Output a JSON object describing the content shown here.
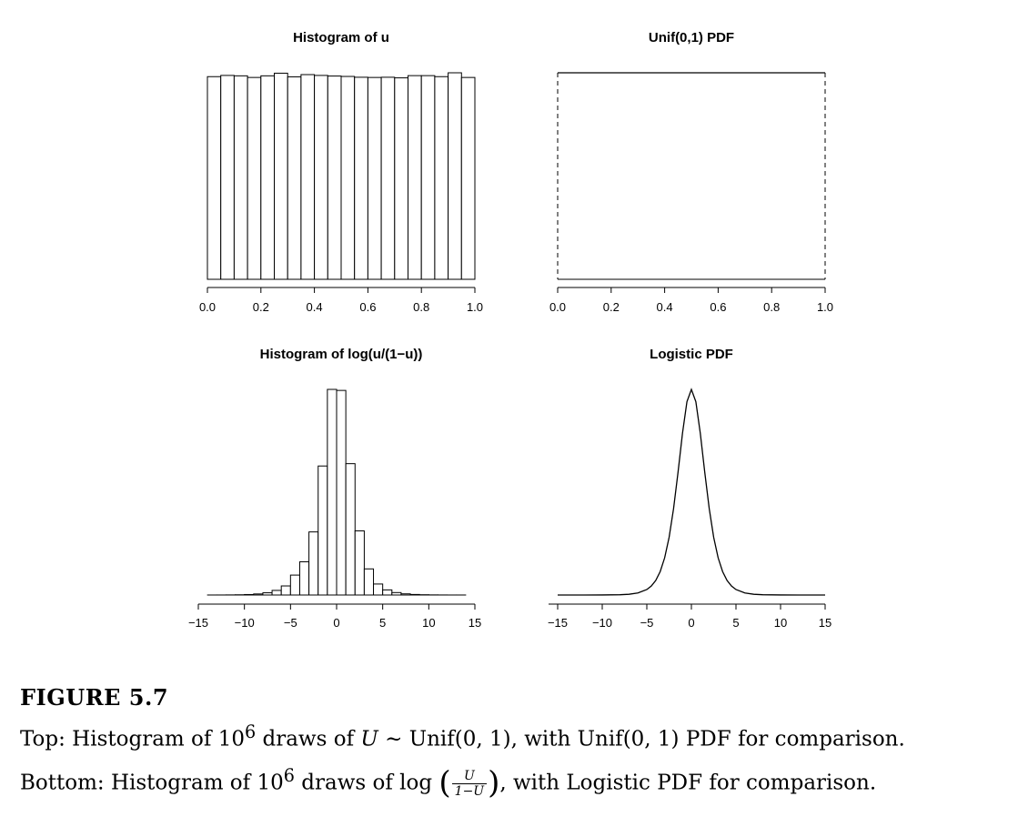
{
  "chart_data": [
    {
      "id": "hist-u",
      "type": "bar",
      "title": "Histogram of u",
      "xlim": [
        0,
        1
      ],
      "ylim": [
        0,
        1
      ],
      "xticks": [
        "0.0",
        "0.2",
        "0.4",
        "0.6",
        "0.8",
        "1.0"
      ],
      "tick_values": [
        0,
        0.2,
        0.4,
        0.6,
        0.8,
        1.0
      ],
      "bin_edges": [
        0,
        0.05,
        0.1,
        0.15,
        0.2,
        0.25,
        0.3,
        0.35,
        0.4,
        0.45,
        0.5,
        0.55,
        0.6,
        0.65,
        0.7,
        0.75,
        0.8,
        0.85,
        0.9,
        0.95,
        1.0
      ],
      "values": [
        0.997,
        1.003,
        1.001,
        0.993,
        1.001,
        1.014,
        0.996,
        1.007,
        1.003,
        1.0,
        0.998,
        0.994,
        0.993,
        0.994,
        0.991,
        1.002,
        1.002,
        0.997,
        1.016,
        0.993
      ]
    },
    {
      "id": "unif-pdf",
      "type": "line",
      "title": "Unif(0,1) PDF",
      "xlim": [
        0,
        1
      ],
      "ylim": [
        0,
        1
      ],
      "xticks": [
        "0.0",
        "0.2",
        "0.4",
        "0.6",
        "0.8",
        "1.0"
      ],
      "tick_values": [
        0,
        0.2,
        0.4,
        0.6,
        0.8,
        1.0
      ],
      "x": [
        0,
        1
      ],
      "y": [
        1,
        1
      ],
      "vertical_dashed_at": [
        0,
        1
      ]
    },
    {
      "id": "hist-logit",
      "type": "bar",
      "title": "Histogram of log(u/(1−u))",
      "xlim": [
        -15,
        15
      ],
      "ylim": [
        0,
        1
      ],
      "xticks": [
        "−15",
        "−10",
        "−5",
        "0",
        "5",
        "10",
        "15"
      ],
      "tick_values": [
        -15,
        -10,
        -5,
        0,
        5,
        10,
        15
      ],
      "bin_width": 1,
      "bin_start": -14,
      "values": [
        0.0001,
        0.0002,
        0.0005,
        0.0011,
        0.0024,
        0.0051,
        0.0108,
        0.0224,
        0.0441,
        0.0968,
        0.1614,
        0.3065,
        0.6268,
        0.999,
        0.994,
        0.6381,
        0.3115,
        0.1269,
        0.0534,
        0.0249,
        0.0119,
        0.0056,
        0.0027,
        0.0013,
        0.0006,
        0.0003,
        0.0001,
        0.0001
      ]
    },
    {
      "id": "logistic-pdf",
      "type": "line",
      "title": "Logistic PDF",
      "xlim": [
        -15,
        15
      ],
      "ylim": [
        0,
        0.25
      ],
      "xticks": [
        "−15",
        "−10",
        "−5",
        "0",
        "5",
        "10",
        "15"
      ],
      "tick_values": [
        -15,
        -10,
        -5,
        0,
        5,
        10,
        15
      ],
      "x": [
        -15,
        -12,
        -10,
        -8,
        -7,
        -6,
        -5,
        -4.5,
        -4,
        -3.5,
        -3,
        -2.5,
        -2,
        -1.5,
        -1,
        -0.5,
        0,
        0.5,
        1,
        1.5,
        2,
        2.5,
        3,
        3.5,
        4,
        4.5,
        5,
        6,
        7,
        8,
        10,
        12,
        15
      ],
      "y": [
        3e-07,
        6e-06,
        4.5e-05,
        0.000335,
        0.00091,
        0.00247,
        0.00665,
        0.0109,
        0.0177,
        0.0285,
        0.0452,
        0.0701,
        0.105,
        0.1491,
        0.1966,
        0.235,
        0.25,
        0.235,
        0.1966,
        0.1491,
        0.105,
        0.0701,
        0.0452,
        0.0285,
        0.0177,
        0.0109,
        0.00665,
        0.00247,
        0.00091,
        0.000335,
        4.5e-05,
        6e-06,
        3e-07
      ]
    }
  ],
  "caption": {
    "label": "FIGURE 5.7",
    "line1": {
      "a": "Top: Histogram of 10",
      "sup": "6",
      "b": " draws of ",
      "var": "U",
      "c": " ∼ Unif(0, 1), with Unif(0, 1) PDF for comparison."
    },
    "line2": {
      "a": "Bottom: Histogram of 10",
      "sup": "6",
      "b": " draws of log ",
      "num": "U",
      "den": "1−U",
      "c": ", with Logistic PDF for comparison."
    }
  }
}
